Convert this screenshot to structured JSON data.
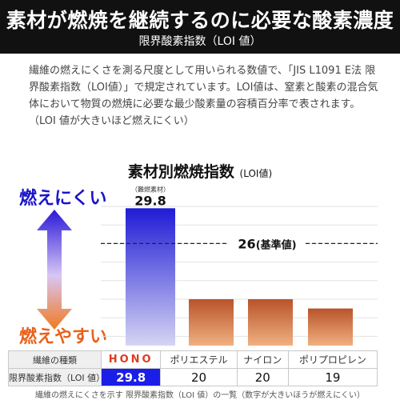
{
  "header": {
    "title": "素材が燃焼を継続するのに必要な酸素濃度",
    "subtitle": "限界酸素指数（LOI 値）"
  },
  "description": "繊維の燃えにくさを測る尺度として用いられる数値で、「JIS L1091 E法 限界酸素指数（LOI値）」で規定されています。LOI値は、窒素と酸素の混合気体において物質の燃焼に必要な最少酸素量の容積百分率で表されます。（LOI 値が大きいほど燃えにくい）",
  "chart_data": {
    "type": "bar",
    "title": "素材別燃焼指数",
    "title_unit": "(LOI値)",
    "categories": [
      "HONO",
      "ポリエステル",
      "ナイロン",
      "ポリプロピレン"
    ],
    "values": [
      29.8,
      20,
      20,
      19
    ],
    "value_labels": [
      "29.8",
      "20",
      "20",
      "19"
    ],
    "top_annotation": "（難燃素材）",
    "reference": {
      "value": 26,
      "label": "26",
      "suffix": "(基準値)"
    },
    "ylim": [
      15,
      30
    ],
    "grid": true,
    "colors": {
      "highlight_top": "#1f1bd6",
      "highlight_bottom": "#d5d5f3",
      "bar_top": "#b9532b",
      "bar_bottom": "#f0b080"
    }
  },
  "scale_labels": {
    "top": "燃えにくい",
    "bottom": "燃えやすい"
  },
  "table": {
    "row1_header": "繊維の種類",
    "row2_header": "限界酸素指数（LOI 値）",
    "brand": "HONO",
    "others": [
      "ポリエステル",
      "ナイロン",
      "ポリプロピレン"
    ],
    "values": [
      "29.8",
      "20",
      "20",
      "19"
    ]
  },
  "caption": "繊維の燃えにくさを示す 限界酸素指数（LOI 値）の一覧（数字が大きいほうが燃えにくい）"
}
